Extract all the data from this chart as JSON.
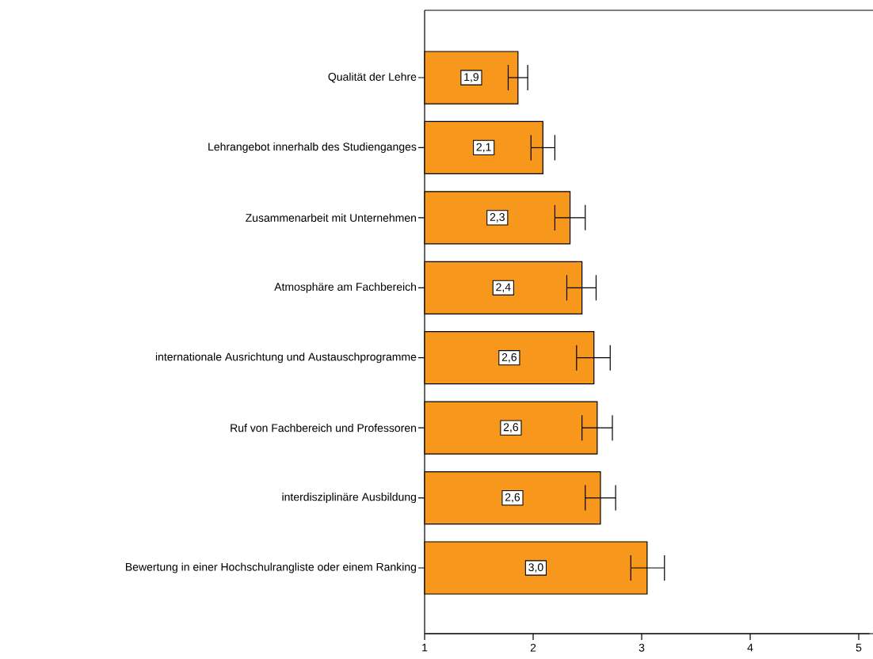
{
  "chart_data": {
    "type": "bar",
    "orientation": "horizontal",
    "color": "#f7981d",
    "categories": [
      "Qualität der Lehre",
      "Lehrangebot innerhalb des Studienganges",
      "Zusammenarbeit mit Unternehmen",
      "Atmosphäre am Fachbereich",
      "internationale Ausrichtung und Austauschprogramme",
      "Ruf von Fachbereich und Professoren",
      "interdisziplinäre Ausbildung",
      "Bewertung in einer Hochschulrangliste oder einem Ranking"
    ],
    "values": [
      1.86,
      2.09,
      2.34,
      2.45,
      2.56,
      2.59,
      2.62,
      3.05
    ],
    "errors": [
      [
        1.77,
        1.95
      ],
      [
        1.98,
        2.2
      ],
      [
        2.2,
        2.48
      ],
      [
        2.31,
        2.58
      ],
      [
        2.4,
        2.71
      ],
      [
        2.45,
        2.73
      ],
      [
        2.48,
        2.76
      ],
      [
        2.9,
        3.21
      ]
    ],
    "value_labels": [
      "1,9",
      "2,1",
      "2,3",
      "2,4",
      "2,6",
      "2,6",
      "2,6",
      "3,0"
    ],
    "xlim": [
      1,
      5.1
    ],
    "xticks": [
      1,
      2,
      3,
      4,
      5
    ],
    "grid": false
  }
}
